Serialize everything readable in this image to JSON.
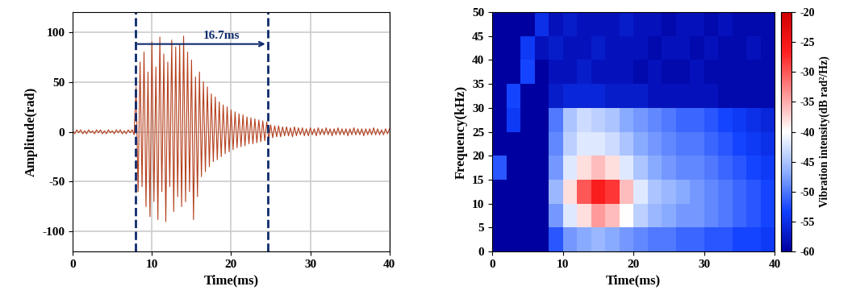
{
  "chart_data": [
    {
      "type": "line",
      "xlabel": "Time(ms)",
      "ylabel": "Amplitude(rad)",
      "xlim": [
        0,
        40
      ],
      "ylim": [
        -120,
        120
      ],
      "xticks": [
        0,
        10,
        20,
        30,
        40
      ],
      "yticks": [
        -100,
        -50,
        0,
        50,
        100
      ],
      "grid": true,
      "color": "#b5401e",
      "annotations": [
        {
          "text": "16.7ms",
          "x_start": 7.9,
          "x_end": 24.6,
          "y": 88
        }
      ],
      "x": [
        0,
        0.25,
        0.5,
        0.75,
        1,
        1.25,
        1.5,
        1.75,
        2,
        2.25,
        2.5,
        2.75,
        3,
        3.25,
        3.5,
        3.75,
        4,
        4.25,
        4.5,
        4.75,
        5,
        5.25,
        5.5,
        5.75,
        6,
        6.25,
        6.5,
        6.75,
        7,
        7.25,
        7.5,
        7.75,
        8,
        8.25,
        8.5,
        8.75,
        9,
        9.25,
        9.5,
        9.75,
        10,
        10.25,
        10.5,
        10.75,
        11,
        11.25,
        11.5,
        11.75,
        12,
        12.25,
        12.5,
        12.75,
        13,
        13.25,
        13.5,
        13.75,
        14,
        14.25,
        14.5,
        14.75,
        15,
        15.25,
        15.5,
        15.75,
        16,
        16.25,
        16.5,
        16.75,
        17,
        17.25,
        17.5,
        17.75,
        18,
        18.25,
        18.5,
        18.75,
        19,
        19.25,
        19.5,
        19.75,
        20,
        20.25,
        20.5,
        20.75,
        21,
        21.25,
        21.5,
        21.75,
        22,
        22.25,
        22.5,
        22.75,
        23,
        23.25,
        23.5,
        23.75,
        24,
        24.25,
        24.5,
        24.75,
        25,
        25.25,
        25.5,
        25.75,
        26,
        26.25,
        26.5,
        26.75,
        27,
        27.25,
        27.5,
        27.75,
        28,
        28.25,
        28.5,
        28.75,
        29,
        29.25,
        29.5,
        29.75,
        30,
        30.25,
        30.5,
        30.75,
        31,
        31.25,
        31.5,
        31.75,
        32,
        32.25,
        32.5,
        32.75,
        33,
        33.25,
        33.5,
        33.75,
        34,
        34.25,
        34.5,
        34.75,
        35,
        35.25,
        35.5,
        35.75,
        36,
        36.25,
        36.5,
        36.75,
        37,
        37.25,
        37.5,
        37.75,
        38,
        38.25,
        38.5,
        38.75,
        39,
        39.25,
        39.5,
        39.75,
        40
      ],
      "values": [
        1,
        -2,
        2,
        -1,
        2,
        -2,
        1,
        -2,
        2,
        -1,
        1,
        -2,
        2,
        -1,
        2,
        -2,
        1,
        -2,
        2,
        -1,
        1,
        -2,
        2,
        -1,
        2,
        -2,
        1,
        -2,
        2,
        -1,
        2,
        -3,
        45,
        -60,
        70,
        -55,
        80,
        -75,
        60,
        -85,
        90,
        -70,
        65,
        -88,
        95,
        -60,
        78,
        -90,
        70,
        -55,
        92,
        -80,
        85,
        -65,
        88,
        -75,
        96,
        -70,
        80,
        -60,
        72,
        -88,
        55,
        -65,
        60,
        -45,
        50,
        -40,
        45,
        -35,
        38,
        -30,
        35,
        -28,
        30,
        -25,
        27,
        -22,
        25,
        -20,
        22,
        -18,
        20,
        -16,
        18,
        -15,
        17,
        -14,
        15,
        -12,
        14,
        -12,
        13,
        -11,
        12,
        -10,
        11,
        -9,
        10,
        -8,
        7,
        -6,
        6,
        -5,
        6,
        -5,
        5,
        -4,
        5,
        -4,
        4,
        -5,
        5,
        -4,
        4,
        -3,
        4,
        -4,
        3,
        -4,
        4,
        -3,
        3,
        -4,
        4,
        -3,
        3,
        -3,
        4,
        -3,
        3,
        -4,
        3,
        -3,
        4,
        -3,
        3,
        -3,
        3,
        -4,
        3,
        -3,
        4,
        -3,
        3,
        -3,
        3,
        -4,
        3,
        -3,
        3,
        -3,
        4,
        -3,
        3,
        -3,
        2,
        -3,
        3,
        -2,
        3
      ]
    },
    {
      "type": "heatmap",
      "xlabel": "Time(ms)",
      "ylabel": "Frequency(kHz)",
      "xlim": [
        0,
        40
      ],
      "ylim": [
        0,
        50
      ],
      "xticks": [
        0,
        10,
        20,
        30,
        40
      ],
      "yticks": [
        0,
        5,
        10,
        15,
        20,
        25,
        30,
        35,
        40,
        45,
        50
      ],
      "x_edges": [
        0,
        2,
        4,
        6,
        8,
        10,
        12,
        14,
        16,
        18,
        20,
        22,
        24,
        26,
        28,
        30,
        32,
        34,
        36,
        38,
        40
      ],
      "y_edges": [
        0,
        5,
        10,
        15,
        20,
        25,
        30,
        35,
        40,
        45,
        50
      ],
      "cells": [
        [
          -60,
          -60,
          -60,
          -60,
          -52,
          -48,
          -47,
          -46,
          -47,
          -48,
          -49,
          -50,
          -50,
          -51,
          -51,
          -52,
          -52,
          -53,
          -53,
          -54
        ],
        [
          -60,
          -60,
          -60,
          -60,
          -48,
          -42,
          -38,
          -34,
          -36,
          -40,
          -44,
          -46,
          -47,
          -48,
          -48,
          -49,
          -50,
          -51,
          -52,
          -53
        ],
        [
          -60,
          -60,
          -60,
          -60,
          -46,
          -38,
          -30,
          -26,
          -28,
          -36,
          -42,
          -45,
          -46,
          -47,
          -48,
          -49,
          -50,
          -51,
          -52,
          -53
        ],
        [
          -52,
          -60,
          -60,
          -60,
          -48,
          -42,
          -38,
          -36,
          -38,
          -42,
          -45,
          -47,
          -48,
          -49,
          -49,
          -50,
          -51,
          -52,
          -53,
          -54
        ],
        [
          -60,
          -60,
          -60,
          -60,
          -49,
          -44,
          -42,
          -42,
          -43,
          -45,
          -47,
          -48,
          -49,
          -50,
          -50,
          -51,
          -52,
          -53,
          -54,
          -55
        ],
        [
          -60,
          -54,
          -60,
          -60,
          -50,
          -45,
          -43,
          -44,
          -45,
          -47,
          -48,
          -49,
          -50,
          -51,
          -51,
          -52,
          -53,
          -54,
          -55,
          -56
        ],
        [
          -60,
          -53,
          -60,
          -60,
          -57,
          -56,
          -56,
          -56,
          -57,
          -57,
          -57,
          -58,
          -58,
          -58,
          -58,
          -58,
          -59,
          -59,
          -59,
          -59
        ],
        [
          -60,
          -60,
          -53,
          -60,
          -58,
          -58,
          -57,
          -58,
          -58,
          -58,
          -59,
          -58,
          -59,
          -59,
          -58,
          -59,
          -59,
          -59,
          -59,
          -59
        ],
        [
          -60,
          -60,
          -54,
          -58,
          -57,
          -58,
          -58,
          -57,
          -58,
          -58,
          -58,
          -59,
          -58,
          -58,
          -59,
          -58,
          -59,
          -59,
          -58,
          -59
        ],
        [
          -60,
          -60,
          -60,
          -55,
          -58,
          -57,
          -58,
          -58,
          -58,
          -57,
          -58,
          -58,
          -59,
          -58,
          -58,
          -59,
          -58,
          -59,
          -59,
          -59
        ]
      ],
      "colorbar": {
        "label": "Vibration intensity(dB rad²/Hz)",
        "range": [
          -60,
          -20
        ],
        "ticks": [
          -60,
          -55,
          -50,
          -45,
          -40,
          -35,
          -30,
          -25,
          -20
        ]
      }
    }
  ]
}
